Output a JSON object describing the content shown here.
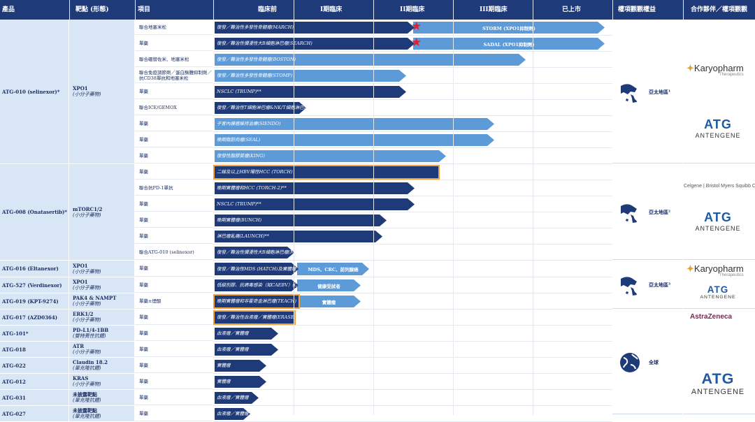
{
  "header": [
    "產品",
    "靶點 (形態)",
    "項目",
    "臨床前",
    "I期臨床",
    "II期臨床",
    "III期臨床",
    "已上市",
    "權項觀觀權益",
    "合作夥伴／權項觀觀"
  ],
  "products": [
    {
      "name": "ATG-010 (selinexor)*",
      "target_name": "XPO1",
      "target_type": "(小分子藥物)"
    },
    {
      "name": "ATG-008 (Onatasertib)*",
      "target_name": "mTORC1/2",
      "target_type": "(小分子藥物)"
    },
    {
      "name": "ATG-016 (Eltanexor)",
      "target_name": "XPO1",
      "target_type": "(小分子藥物)"
    },
    {
      "name": "ATG-527 (Verdinexor)",
      "target_name": "XPO1",
      "target_type": "(小分子藥物)"
    },
    {
      "name": "ATG-019 (KPT-9274)",
      "target_name": "PAK4 & NAMPT",
      "target_type": "(小分子藥物)"
    },
    {
      "name": "ATG-017 (AZD0364)",
      "target_name": "ERK1/2",
      "target_type": "(小分子藥物)"
    },
    {
      "name": "ATG-101*",
      "target_name": "PD-L1/4-1BB",
      "target_type": "(雙特異性抗體)"
    },
    {
      "name": "ATG-018",
      "target_name": "ATR",
      "target_type": "(小分子藥物)"
    },
    {
      "name": "ATG-022",
      "target_name": "Claudin 18.2",
      "target_type": "(單克隆抗體)"
    },
    {
      "name": "ATG-012",
      "target_name": "KRAS",
      "target_type": "(小分子藥物)"
    },
    {
      "name": "ATG-031",
      "target_name": "未披露靶點",
      "target_type": "(單克隆抗體)"
    },
    {
      "name": "ATG-027",
      "target_name": "未披露靶點",
      "target_type": "(單克隆抗體)"
    }
  ],
  "rows": [
    {
      "regimen": "聯合地塞米松",
      "bar": "復發／難治性多發性骨髓瘤(MARCH)",
      "end": 0.5,
      "tone": "dark",
      "star": true,
      "ext": "STORM (XPO1抑制劑)",
      "ext_end": 0.98
    },
    {
      "regimen": "單藥",
      "bar": "復發／難治性彌漫性大B細胞淋巴瘤(SEARCH)",
      "end": 0.5,
      "tone": "dark",
      "star": true,
      "ext": "SADAL (XPO1抑制劑)",
      "ext_end": 0.98
    },
    {
      "regimen": "聯合硼替佐米、地塞米松",
      "bar": "復發／難治性多發性骨髓瘤(BOSTON)",
      "end": 0.78,
      "tone": "light"
    },
    {
      "regimen": "聯合免疫調節劑／蛋白酶體抑制劑／抗CD38單抗和地塞米松",
      "bar": "復發／難治性多發性骨髓瘤(STOMP)",
      "end": 0.48,
      "tone": "light"
    },
    {
      "regimen": "單藥",
      "bar": "NSCLC (TRUMP)**",
      "end": 0.48,
      "tone": "dark"
    },
    {
      "regimen": "聯合ICE/GEMOX",
      "bar": "復發／難治性T細胞淋巴瘤&NK/T細胞淋巴瘤(TOUCH)",
      "end": 0.23,
      "tone": "dark"
    },
    {
      "regimen": "單藥",
      "bar": "子宮內膜癌維持治療(SIENDO)",
      "end": 0.7,
      "tone": "light"
    },
    {
      "regimen": "單藥",
      "bar": "晚期脂肪肉瘤(SEAL)",
      "end": 0.7,
      "tone": "light"
    },
    {
      "regimen": "單藥",
      "bar": "復發性脂膠質瘤(KING)",
      "end": 0.58,
      "tone": "light"
    },
    {
      "regimen": "單藥",
      "bar": "二線及以上HBV陽性HCC (TORCH)",
      "end": 0.56,
      "tone": "dark",
      "outline": true
    },
    {
      "regimen": "聯合抗PD-1單抗",
      "bar": "晚期實體瘤和HCC (TORCH-2)**",
      "end": 0.5,
      "tone": "dark"
    },
    {
      "regimen": "單藥",
      "bar": "NSCLC (TRUMP)**",
      "end": 0.5,
      "tone": "dark"
    },
    {
      "regimen": "單藥",
      "bar": "晚期實體瘤(BUNCH)",
      "end": 0.43,
      "tone": "dark"
    },
    {
      "regimen": "單藥",
      "bar": "淋巴瘤亂痛(LAUNCH)**",
      "end": 0.42,
      "tone": "dark"
    },
    {
      "regimen": "聯合ATG-010 (selinexor)",
      "bar": "復發／難治性彌漫性大B細胞淋巴瘤(MATCH)",
      "end": 0.2,
      "tone": "dark"
    },
    {
      "regimen": "單藥",
      "bar": "復發／難治性MDS (HATCH)及實體瘤",
      "end": 0.21,
      "tone": "dark",
      "ext": "MDS、CRC、前列腺癌",
      "ext_end": 0.39
    },
    {
      "regimen": "單藥",
      "bar": "低級別膠、抗病毒感染（如CAEBV）(CATCH)",
      "end": 0.21,
      "tone": "dark",
      "ext": "健康受試者",
      "ext_end": 0.37
    },
    {
      "regimen": "單藥±煙酸",
      "bar": "晚期實體瘤和非霍奇金淋巴瘤(TEACH)",
      "end": 0.21,
      "tone": "dark",
      "outline": true,
      "ext": "實體瘤",
      "ext_end": 0.37
    },
    {
      "regimen": "單藥",
      "bar": "復發／難治性血液瘤／實體瘤(ERASER)",
      "end": 0.2,
      "tone": "dark",
      "outline": true
    },
    {
      "regimen": "單藥",
      "bar": "血液瘤／實體瘤",
      "end": 0.16,
      "tone": "dark"
    },
    {
      "regimen": "單藥",
      "bar": "血液瘤／實體瘤",
      "end": 0.16,
      "tone": "dark"
    },
    {
      "regimen": "單藥",
      "bar": "實體瘤",
      "end": 0.13,
      "tone": "dark"
    },
    {
      "regimen": "單藥",
      "bar": "實體瘤",
      "end": 0.13,
      "tone": "dark"
    },
    {
      "regimen": "單藥",
      "bar": "血液瘤／實體瘤",
      "end": 0.11,
      "tone": "dark"
    },
    {
      "regimen": "單藥",
      "bar": "血液瘤／實體瘤",
      "end": 0.09,
      "tone": "dark"
    }
  ],
  "territories": [
    {
      "label": "亞太地區¹",
      "icon": "asia-pacific-map-icon"
    },
    {
      "label": "亞太地區²",
      "icon": "asia-pacific-map-icon"
    },
    {
      "label": "亞太地區³",
      "icon": "asia-pacific-map-icon"
    },
    {
      "label": "全球",
      "icon": "globe-icon"
    }
  ],
  "partners": {
    "karyopharm": "Karyopharm",
    "karyopharm_sub": "Therapeutics",
    "antengene": "ANTENGENE",
    "celgene": "Celgene | Bristol Myers Squibb Company",
    "astrazeneca": "AstraZeneca"
  },
  "colors": {
    "navy": "#1e3a78",
    "light_bar": "#5d9ad8",
    "panel": "#d9e6f5",
    "outline": "#f2a33a",
    "star": "#e0212e"
  }
}
